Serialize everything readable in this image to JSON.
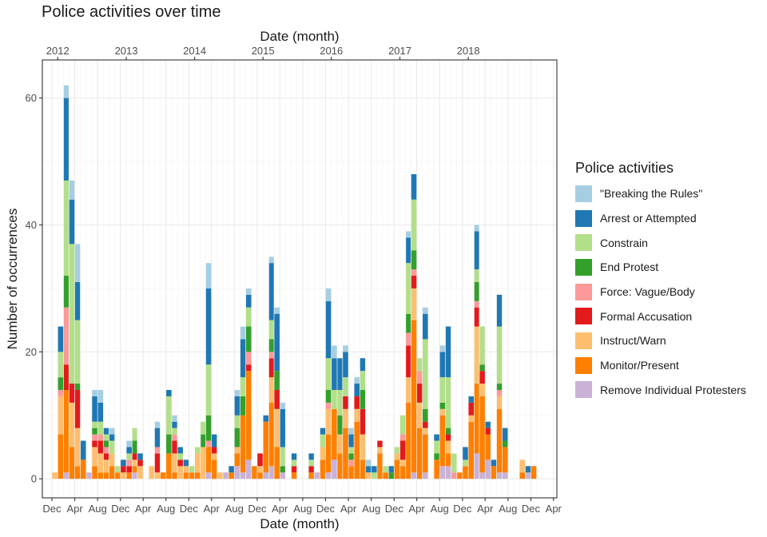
{
  "chart_data": {
    "type": "bar",
    "stacked": true,
    "title": "Police activities over time",
    "xlabel": "Date (month)",
    "xlabel_top": "Date (month)",
    "ylabel": "Number of occurrences",
    "ylim": [
      -3,
      66
    ],
    "xlim": [
      "2011-10-11",
      "2019-04-19"
    ],
    "y_ticks": [
      0,
      20,
      40,
      60
    ],
    "x_ticks": [
      {
        "date": "2011-12-01",
        "label": "Dec"
      },
      {
        "date": "2012-04-01",
        "label": "Apr"
      },
      {
        "date": "2012-08-01",
        "label": "Aug"
      },
      {
        "date": "2012-12-01",
        "label": "Dec"
      },
      {
        "date": "2013-04-01",
        "label": "Apr"
      },
      {
        "date": "2013-08-01",
        "label": "Aug"
      },
      {
        "date": "2013-12-01",
        "label": "Dec"
      },
      {
        "date": "2014-04-01",
        "label": "Apr"
      },
      {
        "date": "2014-08-01",
        "label": "Aug"
      },
      {
        "date": "2014-12-01",
        "label": "Dec"
      },
      {
        "date": "2015-04-01",
        "label": "Apr"
      },
      {
        "date": "2015-08-01",
        "label": "Aug"
      },
      {
        "date": "2015-12-01",
        "label": "Dec"
      },
      {
        "date": "2016-04-01",
        "label": "Apr"
      },
      {
        "date": "2016-08-01",
        "label": "Aug"
      },
      {
        "date": "2016-12-01",
        "label": "Dec"
      },
      {
        "date": "2017-04-01",
        "label": "Apr"
      },
      {
        "date": "2017-08-01",
        "label": "Aug"
      },
      {
        "date": "2017-12-01",
        "label": "Dec"
      },
      {
        "date": "2018-04-01",
        "label": "Apr"
      },
      {
        "date": "2018-08-01",
        "label": "Aug"
      },
      {
        "date": "2018-12-01",
        "label": "Dec"
      },
      {
        "date": "2019-04-01",
        "label": "Apr"
      }
    ],
    "x_ticks_top": [
      {
        "date": "2012-01-01",
        "label": "2012"
      },
      {
        "date": "2013-01-01",
        "label": "2013"
      },
      {
        "date": "2014-01-01",
        "label": "2014"
      },
      {
        "date": "2015-01-01",
        "label": "2015"
      },
      {
        "date": "2016-01-01",
        "label": "2016"
      },
      {
        "date": "2017-01-01",
        "label": "2017"
      },
      {
        "date": "2018-01-01",
        "label": "2018"
      }
    ],
    "grid": true,
    "legend_position": "right",
    "legend": {
      "title": "Police activities",
      "entries": [
        "\"Breaking the Rules\"",
        "Arrest or Attempted",
        "Constrain",
        "End Protest",
        "Force: Vague/Body",
        "Formal Accusation",
        "Instruct/Warn",
        "Monitor/Present",
        "Remove Individual Protesters"
      ]
    },
    "series": [
      {
        "name": "Remove Individual Protesters",
        "color": "#cab2d6"
      },
      {
        "name": "Monitor/Present",
        "color": "#ff7f00"
      },
      {
        "name": "Instruct/Warn",
        "color": "#fdbf6f"
      },
      {
        "name": "Formal Accusation",
        "color": "#e31a1c"
      },
      {
        "name": "Force: Vague/Body",
        "color": "#fb9a99"
      },
      {
        "name": "End Protest",
        "color": "#33a02c"
      },
      {
        "name": "Constrain",
        "color": "#b2df8a"
      },
      {
        "name": "Arrest or Attempted",
        "color": "#1f78b4"
      },
      {
        "name": "\"Breaking the Rules\"",
        "color": "#a6cee3"
      }
    ],
    "series_order_bottom_to_top": [
      "Remove Individual Protesters",
      "Monitor/Present",
      "Instruct/Warn",
      "Formal Accusation",
      "Force: Vague/Body",
      "End Protest",
      "Constrain",
      "Arrest or Attempted",
      "\"Breaking the Rules\""
    ],
    "months": [
      "2011-12",
      "2012-01",
      "2012-02",
      "2012-03",
      "2012-04",
      "2012-05",
      "2012-06",
      "2012-07",
      "2012-08",
      "2012-09",
      "2012-10",
      "2012-11",
      "2012-12",
      "2013-01",
      "2013-02",
      "2013-03",
      "2013-04",
      "2013-05",
      "2013-06",
      "2013-07",
      "2013-08",
      "2013-09",
      "2013-10",
      "2013-11",
      "2013-12",
      "2014-01",
      "2014-02",
      "2014-03",
      "2014-04",
      "2014-05",
      "2014-06",
      "2014-07",
      "2014-08",
      "2014-09",
      "2014-10",
      "2014-11",
      "2014-12",
      "2015-01",
      "2015-02",
      "2015-03",
      "2015-04",
      "2015-05",
      "2015-06",
      "2015-07",
      "2015-08",
      "2015-09",
      "2015-10",
      "2015-11",
      "2015-12",
      "2016-01",
      "2016-02",
      "2016-03",
      "2016-04",
      "2016-05",
      "2016-06",
      "2016-07",
      "2016-08",
      "2016-09",
      "2016-10",
      "2016-11",
      "2016-12",
      "2017-01",
      "2017-02",
      "2017-03",
      "2017-04",
      "2017-05",
      "2017-06",
      "2017-07",
      "2017-08",
      "2017-09",
      "2017-10",
      "2017-11",
      "2017-12",
      "2018-01",
      "2018-02",
      "2018-03",
      "2018-04",
      "2018-05",
      "2018-06",
      "2018-07",
      "2018-08",
      "2018-09",
      "2018-10",
      "2018-11",
      "2018-12",
      "2019-01"
    ],
    "stacks": [
      [
        0,
        0,
        1,
        0,
        0,
        0,
        0,
        0,
        0
      ],
      [
        0,
        7,
        6,
        0,
        1,
        2,
        4,
        4,
        0
      ],
      [
        1,
        13,
        0,
        4,
        9,
        5,
        15,
        13,
        2
      ],
      [
        0,
        5,
        7,
        3,
        0,
        0,
        22,
        7,
        3
      ],
      [
        0,
        2,
        6,
        6,
        0,
        1,
        10,
        6,
        6
      ],
      [
        0,
        3,
        0,
        0,
        0,
        0,
        0,
        3,
        0
      ],
      [
        1,
        0,
        0,
        0,
        0,
        0,
        0,
        0,
        0
      ],
      [
        0,
        2,
        3,
        1,
        1,
        1,
        1,
        4,
        1
      ],
      [
        0,
        1,
        3,
        2,
        1,
        0,
        2,
        3,
        2
      ],
      [
        0,
        1,
        2,
        1,
        1,
        1,
        1,
        1,
        0
      ],
      [
        0,
        2,
        2,
        0,
        0,
        0,
        2,
        1,
        1
      ],
      [
        0,
        1,
        0,
        0,
        0,
        0,
        1,
        0,
        0
      ],
      [
        0,
        0,
        1,
        1,
        0,
        0,
        0,
        1,
        0
      ],
      [
        0,
        1,
        0,
        1,
        1,
        0,
        1,
        1,
        1
      ],
      [
        1,
        1,
        1,
        1,
        0,
        2,
        2,
        0,
        0
      ],
      [
        0,
        0,
        2,
        1,
        0,
        0,
        0,
        1,
        0
      ],
      [
        0,
        0,
        0,
        0,
        0,
        0,
        0,
        0,
        0
      ],
      [
        0,
        0,
        2,
        0,
        0,
        0,
        0,
        0,
        0
      ],
      [
        0,
        0,
        1,
        3,
        1,
        0,
        0,
        3,
        1
      ],
      [
        0,
        1,
        0,
        0,
        0,
        0,
        0,
        0,
        0
      ],
      [
        0,
        4,
        0,
        0,
        0,
        3,
        6,
        1,
        0
      ],
      [
        0,
        1,
        3,
        2,
        1,
        0,
        1,
        1,
        1
      ],
      [
        0,
        0,
        2,
        1,
        0,
        0,
        1,
        1,
        0
      ],
      [
        0,
        1,
        1,
        0,
        0,
        0,
        0,
        1,
        0
      ],
      [
        0,
        1,
        0,
        0,
        0,
        0,
        1,
        0,
        0
      ],
      [
        0,
        1,
        3,
        0,
        0,
        0,
        1,
        0,
        0
      ],
      [
        0,
        0,
        5,
        0,
        0,
        2,
        2,
        0,
        0
      ],
      [
        1,
        4,
        0,
        0,
        1,
        4,
        8,
        12,
        4
      ],
      [
        0,
        3,
        1,
        1,
        0,
        0,
        0,
        2,
        0
      ],
      [
        0,
        0,
        1,
        0,
        0,
        0,
        0,
        0,
        0
      ],
      [
        1,
        0,
        0,
        0,
        0,
        0,
        0,
        0,
        0
      ],
      [
        0,
        1,
        0,
        0,
        0,
        0,
        0,
        1,
        0
      ],
      [
        2,
        2,
        1,
        0,
        0,
        3,
        2,
        3,
        1
      ],
      [
        1,
        9,
        0,
        0,
        0,
        3,
        3,
        6,
        2
      ],
      [
        3,
        14,
        0,
        1,
        2,
        4,
        3,
        2,
        1
      ],
      [
        0,
        2,
        0,
        0,
        0,
        0,
        0,
        0,
        0
      ],
      [
        0,
        1,
        1,
        2,
        0,
        0,
        0,
        0,
        0
      ],
      [
        1,
        8,
        0,
        0,
        0,
        0,
        0,
        1,
        0
      ],
      [
        2,
        10,
        4,
        3,
        1,
        2,
        3,
        9,
        1
      ],
      [
        0,
        5,
        6,
        3,
        0,
        3,
        0,
        9,
        1
      ],
      [
        1,
        0,
        0,
        0,
        0,
        1,
        3,
        6,
        1
      ],
      [
        0,
        0,
        0,
        0,
        0,
        0,
        0,
        0,
        0
      ],
      [
        0,
        1,
        0,
        1,
        0,
        0,
        1,
        1,
        0
      ],
      [
        0,
        0,
        0,
        0,
        0,
        0,
        0,
        0,
        0
      ],
      [
        0,
        0,
        0,
        0,
        0,
        0,
        0,
        0,
        0
      ],
      [
        0,
        1,
        0,
        1,
        0,
        0,
        1,
        1,
        0
      ],
      [
        1,
        0,
        0,
        0,
        0,
        0,
        0,
        0,
        0
      ],
      [
        0,
        3,
        2,
        0,
        0,
        0,
        2,
        1,
        0
      ],
      [
        1,
        6,
        4,
        0,
        1,
        2,
        5,
        9,
        2
      ],
      [
        3,
        8,
        0,
        0,
        0,
        0,
        3,
        5,
        2
      ],
      [
        0,
        4,
        3,
        0,
        0,
        3,
        4,
        5,
        0
      ],
      [
        0,
        8,
        3,
        2,
        0,
        0,
        3,
        4,
        1
      ],
      [
        0,
        2,
        0,
        0,
        1,
        1,
        1,
        2,
        1
      ],
      [
        0,
        9,
        2,
        2,
        0,
        0,
        0,
        2,
        1
      ],
      [
        0,
        3,
        4,
        4,
        0,
        3,
        3,
        2,
        0
      ],
      [
        0,
        0,
        1,
        0,
        0,
        0,
        0,
        1,
        1
      ],
      [
        0,
        0,
        0,
        0,
        0,
        0,
        1,
        1,
        0
      ],
      [
        0,
        4,
        1,
        1,
        0,
        0,
        0,
        0,
        0
      ],
      [
        0,
        1,
        0,
        0,
        0,
        0,
        1,
        0,
        0
      ],
      [
        0,
        0,
        0,
        0,
        0,
        1,
        0,
        1,
        0
      ],
      [
        0,
        3,
        1,
        0,
        0,
        0,
        1,
        0,
        0
      ],
      [
        0,
        2,
        1,
        3,
        1,
        0,
        3,
        0,
        0
      ],
      [
        0,
        12,
        4,
        5,
        2,
        3,
        8,
        4,
        1
      ],
      [
        1,
        24,
        5,
        2,
        1,
        3,
        8,
        4,
        0
      ],
      [
        0,
        8,
        4,
        3,
        2,
        0,
        2,
        0,
        0
      ],
      [
        1,
        6,
        1,
        1,
        0,
        2,
        11,
        4,
        1
      ],
      [
        0,
        0,
        0,
        0,
        0,
        0,
        0,
        0,
        0
      ],
      [
        0,
        3,
        0,
        0,
        0,
        1,
        2,
        1,
        0
      ],
      [
        2,
        8,
        1,
        0,
        0,
        1,
        4,
        4,
        1
      ],
      [
        2,
        2,
        2,
        1,
        0,
        1,
        8,
        8,
        0
      ],
      [
        0,
        0,
        0,
        0,
        1,
        0,
        3,
        0,
        0
      ],
      [
        0,
        1,
        0,
        0,
        0,
        0,
        0,
        0,
        0
      ],
      [
        0,
        2,
        0,
        0,
        0,
        0,
        1,
        2,
        0
      ],
      [
        0,
        9,
        1,
        2,
        0,
        0,
        0,
        1,
        0
      ],
      [
        4,
        11,
        9,
        3,
        1,
        3,
        2,
        6,
        1
      ],
      [
        1,
        12,
        2,
        2,
        0,
        1,
        6,
        0,
        0
      ],
      [
        3,
        4,
        0,
        1,
        0,
        0,
        0,
        1,
        0
      ],
      [
        0,
        2,
        0,
        0,
        0,
        0,
        0,
        1,
        0
      ],
      [
        1,
        10,
        2,
        0,
        1,
        1,
        9,
        5,
        0
      ],
      [
        1,
        4,
        0,
        0,
        0,
        1,
        0,
        2,
        0
      ],
      [
        0,
        0,
        0,
        0,
        0,
        0,
        0,
        0,
        0
      ],
      [
        0,
        0,
        0,
        0,
        0,
        0,
        0,
        0,
        0
      ],
      [
        0,
        1,
        2,
        0,
        0,
        0,
        0,
        0,
        0
      ],
      [
        1,
        0,
        0,
        0,
        0,
        0,
        0,
        1,
        0
      ],
      [
        0,
        2,
        0,
        0,
        0,
        0,
        0,
        0,
        0
      ],
      [
        0,
        0,
        0,
        0,
        0,
        0,
        0,
        0,
        0
      ]
    ]
  }
}
